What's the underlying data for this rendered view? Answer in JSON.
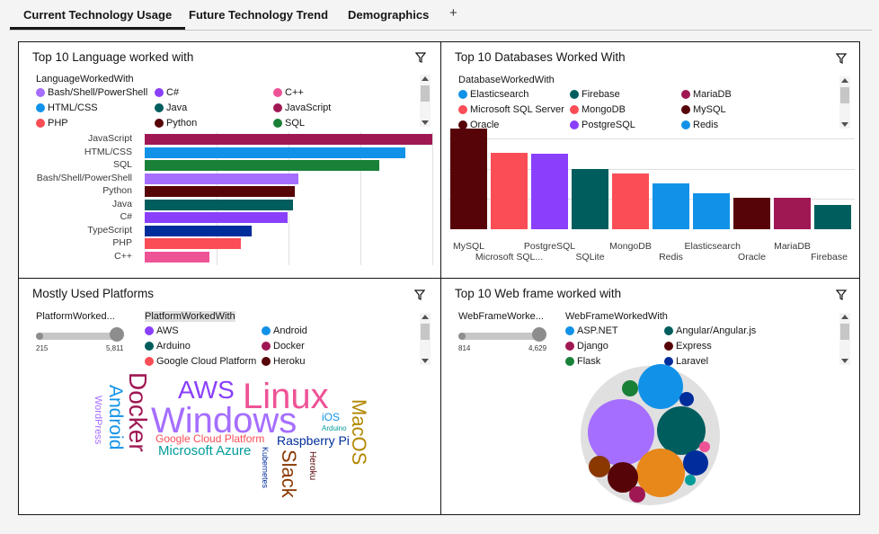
{
  "tabs": [
    {
      "label": "Current Technology Usage",
      "active": true
    },
    {
      "label": "Future Technology Trend",
      "active": false
    },
    {
      "label": "Demographics",
      "active": false
    }
  ],
  "add_tab": "+",
  "panels": {
    "languages": {
      "title": "Top 10 Language worked with",
      "legend_title": "LanguageWorkedWith",
      "legend_items": [
        {
          "label": "Bash/Shell/PowerShell",
          "color": "#a56eff"
        },
        {
          "label": "C#",
          "color": "#8a3ffc"
        },
        {
          "label": "C++",
          "color": "#ee5396"
        },
        {
          "label": "HTML/CSS",
          "color": "#1192e8"
        },
        {
          "label": "Java",
          "color": "#005d5d"
        },
        {
          "label": "JavaScript",
          "color": "#9f1853"
        },
        {
          "label": "PHP",
          "color": "#fa4d56"
        },
        {
          "label": "Python",
          "color": "#570408"
        },
        {
          "label": "SQL",
          "color": "#198038"
        }
      ]
    },
    "databases": {
      "title": "Top 10 Databases Worked With",
      "legend_title": "DatabaseWorkedWith",
      "legend_items": [
        {
          "label": "Elasticsearch",
          "color": "#1192e8"
        },
        {
          "label": "Firebase",
          "color": "#005d5d"
        },
        {
          "label": "MariaDB",
          "color": "#9f1853"
        },
        {
          "label": "Microsoft SQL Server",
          "color": "#fa4d56"
        },
        {
          "label": "MongoDB",
          "color": "#fa4d56"
        },
        {
          "label": "MySQL",
          "color": "#570408"
        },
        {
          "label": "Oracle",
          "color": "#570408"
        },
        {
          "label": "PostgreSQL",
          "color": "#8a3ffc"
        },
        {
          "label": "Redis",
          "color": "#1192e8"
        }
      ]
    },
    "platforms": {
      "title": "Mostly Used Platforms",
      "slider_title": "PlatformWorked...",
      "slider_min": "215",
      "slider_max": "5,811",
      "legend_title": "PlatformWorkedWith",
      "legend_items": [
        {
          "label": "AWS",
          "color": "#8a3ffc"
        },
        {
          "label": "Android",
          "color": "#1192e8"
        },
        {
          "label": "Arduino",
          "color": "#005d5d"
        },
        {
          "label": "Docker",
          "color": "#9f1853"
        },
        {
          "label": "Google Cloud Platform",
          "color": "#fa4d56"
        },
        {
          "label": "Heroku",
          "color": "#570408"
        }
      ],
      "words": [
        {
          "text": "Linux",
          "color": "#ee5396"
        },
        {
          "text": "Windows",
          "color": "#a56eff"
        },
        {
          "text": "Docker",
          "color": "#9f1853"
        },
        {
          "text": "AWS",
          "color": "#8a3ffc"
        },
        {
          "text": "Android",
          "color": "#1192e8"
        },
        {
          "text": "MacOS",
          "color": "#b28600"
        },
        {
          "text": "Raspberry Pi",
          "color": "#002d9c"
        },
        {
          "text": "Google Cloud Platform",
          "color": "#fa4d56"
        },
        {
          "text": "Microsoft Azure",
          "color": "#009d9a"
        },
        {
          "text": "Slack",
          "color": "#8a3800"
        },
        {
          "text": "WordPress",
          "color": "#a56eff"
        },
        {
          "text": "iOS",
          "color": "#1192e8"
        },
        {
          "text": "Arduino",
          "color": "#009d9a"
        },
        {
          "text": "Heroku",
          "color": "#570408"
        },
        {
          "text": "Kubernetes",
          "color": "#002d9c"
        }
      ]
    },
    "webframes": {
      "title": "Top 10 Web frame worked with",
      "slider_title": "WebFrameWorke...",
      "slider_min": "814",
      "slider_max": "4,629",
      "legend_title": "WebFrameWorkedWith",
      "legend_items": [
        {
          "label": "ASP.NET",
          "color": "#1192e8"
        },
        {
          "label": "Angular/Angular.js",
          "color": "#005d5d"
        },
        {
          "label": "Django",
          "color": "#9f1853"
        },
        {
          "label": "Express",
          "color": "#570408"
        },
        {
          "label": "Flask",
          "color": "#198038"
        },
        {
          "label": "Laravel",
          "color": "#002d9c"
        }
      ]
    }
  },
  "chart_data": [
    {
      "type": "bar",
      "orientation": "horizontal",
      "title": "Top 10 Language worked with",
      "categories": [
        "JavaScript",
        "HTML/CSS",
        "SQL",
        "Bash/Shell/PowerShell",
        "Python",
        "Java",
        "C#",
        "TypeScript",
        "PHP",
        "C++"
      ],
      "values": [
        100,
        90.6,
        81.6,
        53.4,
        52.2,
        51.6,
        49.7,
        37.2,
        33.4,
        22.5
      ],
      "colors": [
        "#9f1853",
        "#1192e8",
        "#198038",
        "#a56eff",
        "#570408",
        "#005d5d",
        "#8a3ffc",
        "#002d9c",
        "#fa4d56",
        "#ee5396"
      ],
      "grid": true
    },
    {
      "type": "bar",
      "title": "Top 10 Databases Worked With",
      "categories": [
        "MySQL",
        "Microsoft SQL...",
        "PostgreSQL",
        "SQLite",
        "MongoDB",
        "Redis",
        "Elasticsearch",
        "Oracle",
        "MariaDB",
        "Firebase"
      ],
      "values": [
        100,
        75.5,
        75.2,
        59.4,
        55.3,
        45.9,
        36.1,
        31.6,
        31.0,
        23.7
      ],
      "colors": [
        "#570408",
        "#fa4d56",
        "#8a3ffc",
        "#005d5d",
        "#fa4d56",
        "#1192e8",
        "#1192e8",
        "#570408",
        "#9f1853",
        "#005d5d"
      ],
      "grid": true
    },
    {
      "type": "bubble",
      "title": "Top 10 Web frame worked with",
      "radii_relative": [
        1.0,
        0.7,
        0.7,
        0.72,
        0.44,
        0.43,
        0.34,
        0.33,
        0.25,
        0.25,
        0.22,
        0.2,
        0.2,
        0.2
      ]
    }
  ]
}
